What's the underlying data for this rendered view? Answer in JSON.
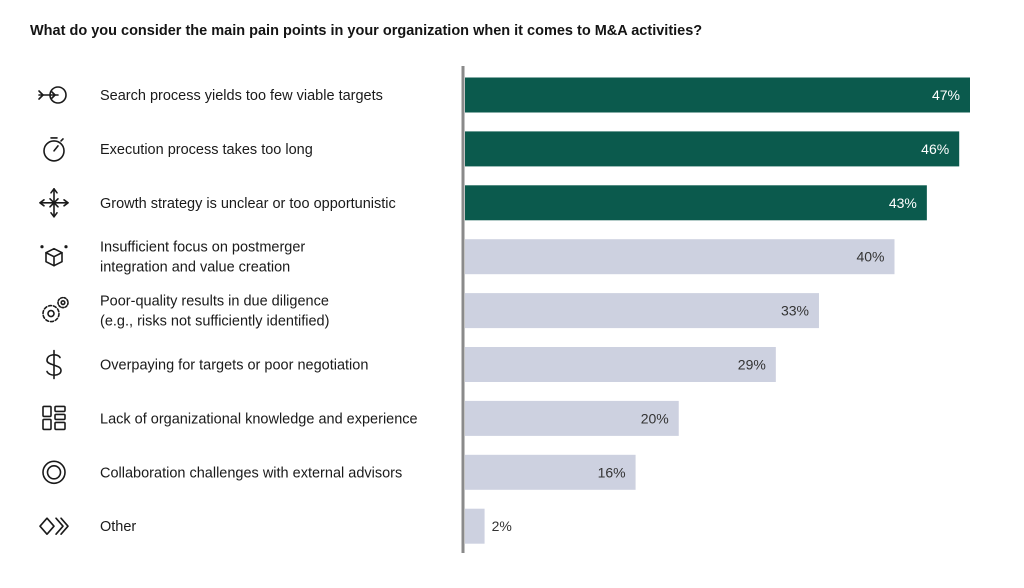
{
  "chart_data": {
    "type": "bar",
    "orientation": "horizontal",
    "title": "What do you consider the main pain points in your organization when it comes to M&A activities?",
    "categories": [
      [
        "Search process yields too few viable targets"
      ],
      [
        "Execution process takes too long"
      ],
      [
        "Growth strategy is unclear or too opportunistic"
      ],
      [
        "Insufficient focus on postmerger",
        "integration and value creation"
      ],
      [
        "Poor-quality results in due diligence",
        "(e.g., risks not sufficiently identified)"
      ],
      [
        "Overpaying for targets or poor negotiation"
      ],
      [
        "Lack of organizational knowledge and experience"
      ],
      [
        "Collaboration challenges with external advisors"
      ],
      [
        "Other"
      ]
    ],
    "values": [
      47,
      46,
      43,
      40,
      33,
      29,
      20,
      16,
      2
    ],
    "value_labels": [
      "47%",
      "46%",
      "43%",
      "40%",
      "33%",
      "29%",
      "20%",
      "16%",
      "2%"
    ],
    "icons": [
      "target-arrow-icon",
      "stopwatch-icon",
      "compass-arrows-icon",
      "cube-icon",
      "gears-icon",
      "dollar-icon",
      "grid-blocks-icon",
      "concentric-circles-icon",
      "chevrons-icon"
    ],
    "highlight_count": 3,
    "colors": {
      "highlight": "#0b5a4d",
      "normal": "#cdd1e0",
      "axis": "#8a8a8a",
      "highlight_text": "#ffffff",
      "normal_text": "#333333"
    },
    "xlim": [
      0,
      47
    ]
  }
}
